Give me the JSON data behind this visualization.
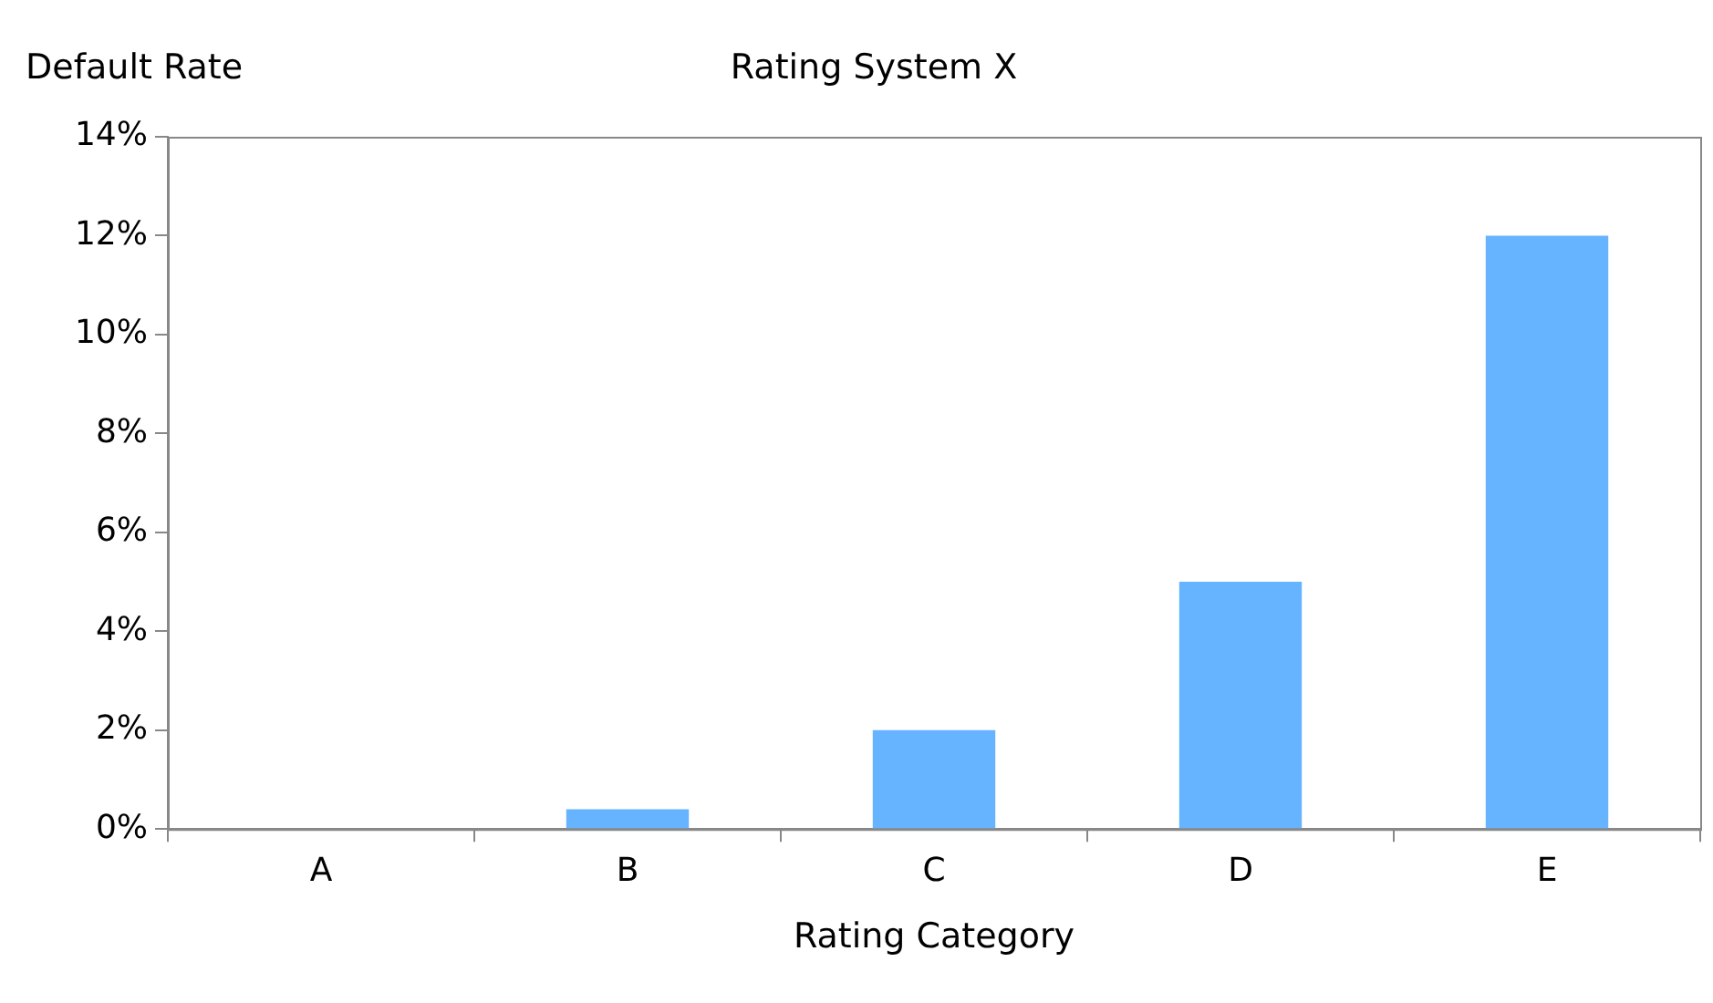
{
  "chart_data": {
    "type": "bar",
    "title": "Rating System X",
    "xlabel": "Rating Category",
    "ylabel": "Default Rate",
    "categories": [
      "A",
      "B",
      "C",
      "D",
      "E"
    ],
    "values": [
      0,
      0.4,
      2,
      5,
      12
    ],
    "color": "#66b3ff",
    "ylim": [
      0,
      14
    ],
    "yticks": [
      {
        "value": 0,
        "label": "0%"
      },
      {
        "value": 2,
        "label": "2%"
      },
      {
        "value": 4,
        "label": "4%"
      },
      {
        "value": 6,
        "label": "6%"
      },
      {
        "value": 8,
        "label": "8%"
      },
      {
        "value": 10,
        "label": "10%"
      },
      {
        "value": 12,
        "label": "12%"
      },
      {
        "value": 14,
        "label": "14%"
      }
    ],
    "grid": false,
    "legend": false
  }
}
